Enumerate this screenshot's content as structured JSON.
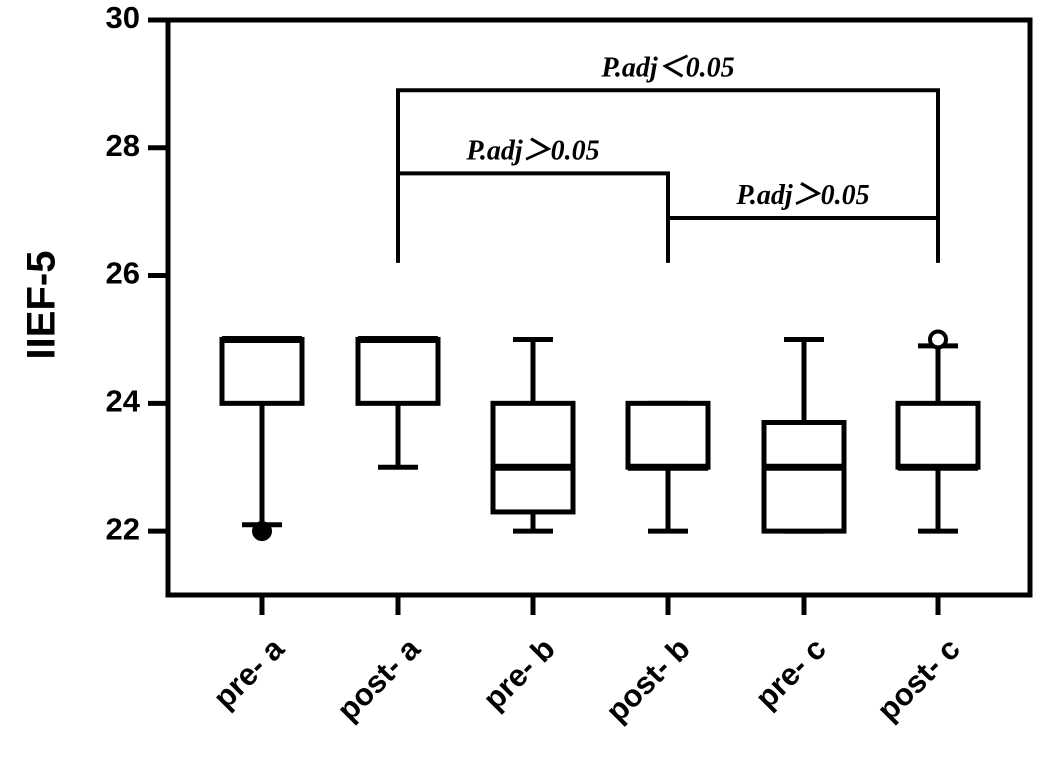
{
  "chart_data": {
    "type": "box",
    "y_label": "IIEF-5",
    "categories": [
      "pre- a",
      "post- a",
      "pre- b",
      "post- b",
      "pre- c",
      "post- c"
    ],
    "boxes": [
      {
        "min": 22.1,
        "q1": 24,
        "median": 25,
        "q3": 25,
        "max": 25,
        "outliers": [
          22
        ]
      },
      {
        "min": 23,
        "q1": 24,
        "median": 25,
        "q3": 25,
        "max": 25,
        "outliers": []
      },
      {
        "min": 22,
        "q1": 22.3,
        "median": 23,
        "q3": 24,
        "max": 25,
        "outliers": []
      },
      {
        "min": 22,
        "q1": 23,
        "median": 23,
        "q3": 24,
        "max": 24,
        "outliers": []
      },
      {
        "min": 22,
        "q1": 22,
        "median": 23,
        "q3": 23.7,
        "max": 25,
        "outliers": []
      },
      {
        "min": 22,
        "q1": 23,
        "median": 23,
        "q3": 24,
        "max": 24.9,
        "outliers": [
          25
        ]
      }
    ],
    "color": "#000000",
    "ylim": [
      21,
      30
    ],
    "yticks": [
      22,
      24,
      26,
      28,
      30
    ],
    "annotations": [
      {
        "text": "P.adj＜0.05",
        "from": "post- a",
        "to": "post- c",
        "y": 28.9,
        "leg": 26.2
      },
      {
        "text": "P.adj＞0.05",
        "from": "post- a",
        "to": "post- b",
        "y": 27.6,
        "leg": 26.2
      },
      {
        "text": "P.adj＞0.05",
        "from": "post- b",
        "to": "post- c",
        "y": 26.9,
        "leg": 26.2
      }
    ]
  }
}
